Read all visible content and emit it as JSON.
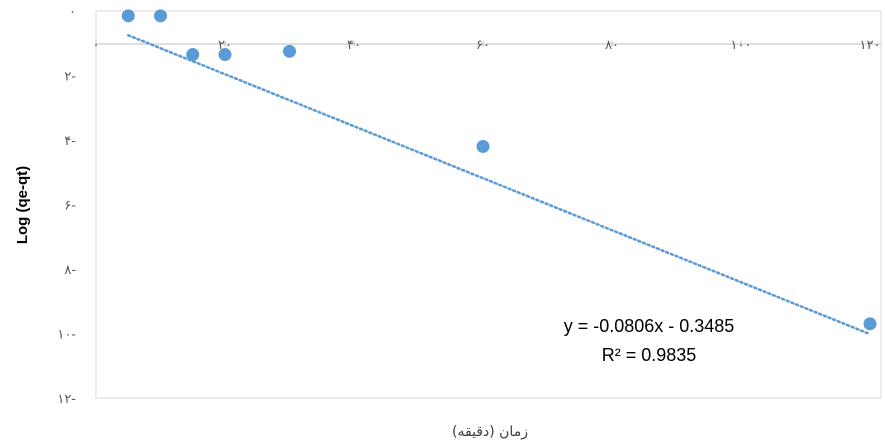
{
  "chart_data": {
    "type": "scatter",
    "title": "",
    "xlabel": "زمان (دقیقه)",
    "ylabel": "Log (qe-qt)",
    "xlim": [
      0,
      120
    ],
    "ylim": [
      -12,
      0
    ],
    "x_ticks": [
      0,
      20,
      40,
      60,
      80,
      100,
      120
    ],
    "x_tick_labels": [
      "۰",
      "۲۰",
      "۴۰",
      "۶۰",
      "۸۰",
      "۱۰۰",
      "۱۲۰"
    ],
    "y_ticks": [
      0,
      -2,
      -4,
      -6,
      -8,
      -10,
      -12
    ],
    "y_tick_labels": [
      "۰",
      "۲-",
      "۴-",
      "۶-",
      "۸-",
      "۱۰-",
      "۱۲-"
    ],
    "x_axis_position": "top",
    "grid": false,
    "colors": {
      "points": "#5b9bd5",
      "trendline": "#5b9bd5",
      "plot_border": "#d9d9d9"
    },
    "series": [
      {
        "x": [
          5,
          10,
          15,
          20,
          30,
          60,
          120
        ],
        "y": [
          -0.15,
          -0.15,
          -1.35,
          -1.35,
          -1.25,
          -4.2,
          -9.7
        ]
      }
    ],
    "trendline": {
      "type": "linear",
      "slope": -0.0806,
      "intercept": -0.3485,
      "style": "dotted"
    },
    "annotations": {
      "equation": "y = -0.0806x - 0.3485",
      "r_squared": "R² = 0.9835"
    }
  }
}
